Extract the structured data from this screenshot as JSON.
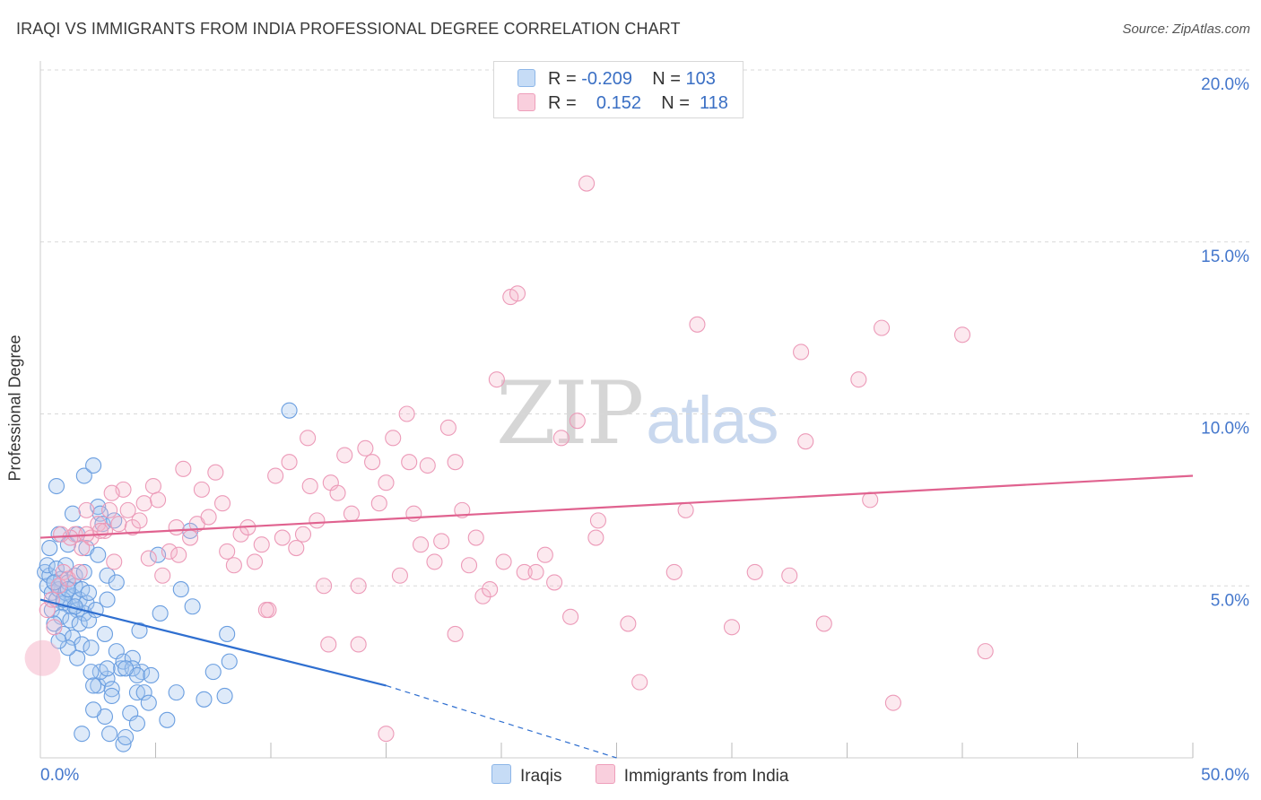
{
  "title": "IRAQI VS IMMIGRANTS FROM INDIA PROFESSIONAL DEGREE CORRELATION CHART",
  "source": "Source: ZipAtlas.com",
  "watermark": {
    "zip": "ZIP",
    "atlas": "atlas"
  },
  "legend": {
    "rows": [
      {
        "r_label": "R =",
        "r_value": "-0.209",
        "n_label": "N =",
        "n_value": "103",
        "color": "#a8c8f0"
      },
      {
        "r_label": "R =",
        "r_value": "0.152",
        "n_label": "N =",
        "n_value": "118",
        "color": "#f5b7cb"
      }
    ]
  },
  "bottom_legend": [
    {
      "label": "Iraqis",
      "color": "#a8c8f0"
    },
    {
      "label": "Immigrants from India",
      "color": "#f5b7cb"
    }
  ],
  "colors": {
    "blue": "#6a9ee0",
    "blue_line": "#2f6fd0",
    "pink": "#ec9ab8",
    "pink_line": "#e0628f",
    "axis_text": "#4477cc",
    "grid": "#d8d8d8"
  },
  "chart_data": {
    "type": "scatter",
    "xlabel": "",
    "ylabel": "Professional Degree",
    "xlim": [
      0,
      50
    ],
    "ylim": [
      0,
      20
    ],
    "x_tick_labels": [
      "0.0%",
      "50.0%"
    ],
    "y_ticks": [
      5,
      10,
      15,
      20
    ],
    "y_tick_labels": [
      "5.0%",
      "10.0%",
      "15.0%",
      "20.0%"
    ],
    "series": [
      {
        "name": "Iraqis",
        "r": -0.209,
        "n": 103,
        "trend": {
          "x0": 0,
          "y0": 4.6,
          "x1": 15,
          "y1": 2.1,
          "dash_to_x": 25,
          "dash_to_y": 0.0
        },
        "points": [
          [
            0.2,
            5.4
          ],
          [
            0.3,
            5.0
          ],
          [
            0.4,
            5.3
          ],
          [
            0.5,
            4.8
          ],
          [
            0.6,
            5.1
          ],
          [
            0.7,
            4.6
          ],
          [
            0.8,
            4.9
          ],
          [
            0.9,
            5.2
          ],
          [
            1.0,
            4.5
          ],
          [
            1.1,
            4.8
          ],
          [
            1.2,
            5.1
          ],
          [
            1.3,
            4.4
          ],
          [
            1.4,
            4.7
          ],
          [
            1.5,
            5.0
          ],
          [
            1.6,
            4.3
          ],
          [
            1.7,
            4.6
          ],
          [
            1.8,
            4.9
          ],
          [
            1.9,
            4.2
          ],
          [
            2.0,
            4.5
          ],
          [
            2.1,
            4.8
          ],
          [
            0.3,
            5.6
          ],
          [
            0.5,
            4.3
          ],
          [
            0.7,
            5.5
          ],
          [
            0.9,
            4.1
          ],
          [
            1.1,
            5.6
          ],
          [
            1.3,
            4.0
          ],
          [
            1.5,
            5.3
          ],
          [
            1.7,
            3.9
          ],
          [
            1.9,
            5.4
          ],
          [
            2.1,
            4.0
          ],
          [
            0.4,
            6.1
          ],
          [
            0.6,
            3.9
          ],
          [
            0.8,
            6.5
          ],
          [
            1.0,
            3.6
          ],
          [
            1.2,
            6.2
          ],
          [
            1.4,
            3.5
          ],
          [
            1.6,
            6.5
          ],
          [
            1.8,
            3.3
          ],
          [
            2.0,
            6.1
          ],
          [
            2.2,
            3.2
          ],
          [
            0.7,
            7.9
          ],
          [
            1.4,
            7.1
          ],
          [
            1.9,
            8.2
          ],
          [
            2.3,
            8.5
          ],
          [
            2.5,
            7.3
          ],
          [
            2.6,
            7.1
          ],
          [
            2.7,
            6.8
          ],
          [
            3.2,
            6.9
          ],
          [
            2.5,
            5.9
          ],
          [
            2.9,
            5.3
          ],
          [
            3.3,
            5.1
          ],
          [
            2.4,
            4.3
          ],
          [
            2.9,
            4.6
          ],
          [
            2.8,
            3.6
          ],
          [
            3.3,
            3.1
          ],
          [
            3.5,
            2.6
          ],
          [
            3.6,
            2.8
          ],
          [
            4.0,
            2.9
          ],
          [
            4.3,
            3.7
          ],
          [
            4.4,
            2.5
          ],
          [
            4.2,
            1.9
          ],
          [
            4.5,
            1.9
          ],
          [
            4.7,
            1.6
          ],
          [
            3.9,
            1.3
          ],
          [
            2.5,
            2.1
          ],
          [
            2.9,
            2.3
          ],
          [
            2.8,
            1.2
          ],
          [
            2.3,
            1.4
          ],
          [
            3.0,
            0.7
          ],
          [
            3.6,
            0.4
          ],
          [
            3.7,
            0.6
          ],
          [
            4.2,
            1.0
          ],
          [
            5.5,
            1.1
          ],
          [
            4.0,
            2.6
          ],
          [
            3.1,
            2.0
          ],
          [
            2.6,
            2.5
          ],
          [
            2.2,
            2.5
          ],
          [
            1.8,
            0.7
          ],
          [
            1.6,
            2.9
          ],
          [
            1.2,
            3.2
          ],
          [
            0.8,
            3.4
          ],
          [
            6.1,
            4.9
          ],
          [
            6.6,
            4.4
          ],
          [
            6.5,
            6.6
          ],
          [
            7.1,
            1.7
          ],
          [
            8.0,
            1.8
          ],
          [
            7.5,
            2.5
          ],
          [
            8.2,
            2.8
          ],
          [
            8.1,
            3.6
          ],
          [
            5.2,
            4.2
          ],
          [
            5.1,
            5.9
          ],
          [
            4.2,
            2.4
          ],
          [
            3.7,
            2.6
          ],
          [
            2.9,
            2.6
          ],
          [
            2.3,
            2.1
          ],
          [
            3.1,
            1.8
          ],
          [
            4.8,
            2.4
          ],
          [
            5.9,
            1.9
          ],
          [
            1.0,
            4.6
          ],
          [
            1.5,
            4.4
          ],
          [
            10.8,
            10.1
          ],
          [
            0.6,
            5.1
          ],
          [
            1.2,
            4.9
          ]
        ]
      },
      {
        "name": "Immigrants from India",
        "r": 0.152,
        "n": 118,
        "trend": {
          "x0": 0,
          "y0": 6.4,
          "x1": 50,
          "y1": 8.2
        },
        "points": [
          [
            0.1,
            2.9
          ],
          [
            0.3,
            4.3
          ],
          [
            0.6,
            3.8
          ],
          [
            0.8,
            5.0
          ],
          [
            1.0,
            5.4
          ],
          [
            1.2,
            5.2
          ],
          [
            1.5,
            6.5
          ],
          [
            1.8,
            6.1
          ],
          [
            2.0,
            7.2
          ],
          [
            2.2,
            6.4
          ],
          [
            2.5,
            6.8
          ],
          [
            2.8,
            6.6
          ],
          [
            3.0,
            7.2
          ],
          [
            3.2,
            5.7
          ],
          [
            3.4,
            6.8
          ],
          [
            3.6,
            7.8
          ],
          [
            3.8,
            7.2
          ],
          [
            4.0,
            6.7
          ],
          [
            4.3,
            6.9
          ],
          [
            4.5,
            7.4
          ],
          [
            4.7,
            5.8
          ],
          [
            4.9,
            7.9
          ],
          [
            5.1,
            7.5
          ],
          [
            5.3,
            5.3
          ],
          [
            5.6,
            6.0
          ],
          [
            5.9,
            6.7
          ],
          [
            6.2,
            8.4
          ],
          [
            6.5,
            6.4
          ],
          [
            6.8,
            6.8
          ],
          [
            7.0,
            7.8
          ],
          [
            7.3,
            7.0
          ],
          [
            7.6,
            8.3
          ],
          [
            7.9,
            7.4
          ],
          [
            8.1,
            6.0
          ],
          [
            8.4,
            5.6
          ],
          [
            8.7,
            6.5
          ],
          [
            9.0,
            6.7
          ],
          [
            9.3,
            5.7
          ],
          [
            9.6,
            6.2
          ],
          [
            9.9,
            4.3
          ],
          [
            10.2,
            8.2
          ],
          [
            10.5,
            6.4
          ],
          [
            10.8,
            8.6
          ],
          [
            11.1,
            6.1
          ],
          [
            11.4,
            6.5
          ],
          [
            11.7,
            7.9
          ],
          [
            12.0,
            6.9
          ],
          [
            12.3,
            5.0
          ],
          [
            12.6,
            8.0
          ],
          [
            12.9,
            7.7
          ],
          [
            13.2,
            8.8
          ],
          [
            13.5,
            7.1
          ],
          [
            13.8,
            5.0
          ],
          [
            14.1,
            9.0
          ],
          [
            14.4,
            8.6
          ],
          [
            14.7,
            7.4
          ],
          [
            15.0,
            8.0
          ],
          [
            15.3,
            9.3
          ],
          [
            15.6,
            5.3
          ],
          [
            15.9,
            10.0
          ],
          [
            16.2,
            7.1
          ],
          [
            16.5,
            6.2
          ],
          [
            16.8,
            8.5
          ],
          [
            17.1,
            5.7
          ],
          [
            17.4,
            6.3
          ],
          [
            17.7,
            9.6
          ],
          [
            18.0,
            8.6
          ],
          [
            18.3,
            7.2
          ],
          [
            18.6,
            5.6
          ],
          [
            18.9,
            6.4
          ],
          [
            19.2,
            4.7
          ],
          [
            19.5,
            4.9
          ],
          [
            19.8,
            11.0
          ],
          [
            20.1,
            5.7
          ],
          [
            20.4,
            13.4
          ],
          [
            20.7,
            13.5
          ],
          [
            21.0,
            5.4
          ],
          [
            21.5,
            5.4
          ],
          [
            21.9,
            5.9
          ],
          [
            22.3,
            5.1
          ],
          [
            22.6,
            9.3
          ],
          [
            23.0,
            4.1
          ],
          [
            23.3,
            9.8
          ],
          [
            23.7,
            16.7
          ],
          [
            24.1,
            6.4
          ],
          [
            24.2,
            6.9
          ],
          [
            26.0,
            2.2
          ],
          [
            25.5,
            3.9
          ],
          [
            27.5,
            5.4
          ],
          [
            28.0,
            7.2
          ],
          [
            28.5,
            12.6
          ],
          [
            30.0,
            3.8
          ],
          [
            31.0,
            5.4
          ],
          [
            32.5,
            5.3
          ],
          [
            33.0,
            11.8
          ],
          [
            33.2,
            9.2
          ],
          [
            34.0,
            3.9
          ],
          [
            35.5,
            11.0
          ],
          [
            36.0,
            7.5
          ],
          [
            36.5,
            12.5
          ],
          [
            37.0,
            1.6
          ],
          [
            40.0,
            12.3
          ],
          [
            41.0,
            3.1
          ],
          [
            15.0,
            0.7
          ],
          [
            12.5,
            3.3
          ],
          [
            9.8,
            4.3
          ],
          [
            13.8,
            3.3
          ],
          [
            6.0,
            5.9
          ],
          [
            18.0,
            3.6
          ],
          [
            16.0,
            8.6
          ],
          [
            11.6,
            9.3
          ],
          [
            3.1,
            7.7
          ],
          [
            2.6,
            6.6
          ],
          [
            2.0,
            6.5
          ],
          [
            1.7,
            5.4
          ],
          [
            1.3,
            6.4
          ],
          [
            0.9,
            6.5
          ],
          [
            0.5,
            4.6
          ]
        ]
      }
    ]
  }
}
